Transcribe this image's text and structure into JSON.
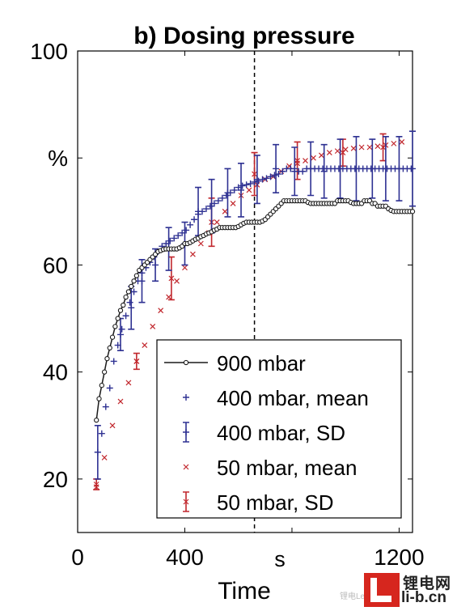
{
  "chart_data": {
    "type": "scatter",
    "title": "b) Dosing pressure",
    "xlabel": "Time",
    "x_unit_label": "s",
    "ylabel_unit": "%",
    "xlim": [
      0,
      1250
    ],
    "ylim": [
      10,
      100
    ],
    "xticks": [
      0,
      400,
      1200
    ],
    "yticks": [
      20,
      40,
      60,
      80,
      100
    ],
    "ytick_labels": [
      "20",
      "40",
      "60",
      "%",
      "100"
    ],
    "vline_x": 660,
    "legend_position": "lower-right",
    "colors": {
      "black": "#1a1a1a",
      "blue": "#2e3192",
      "red": "#c1272d"
    },
    "series": [
      {
        "name": "900 mbar",
        "marker": "circle-line",
        "color": "#1a1a1a",
        "x": [
          70,
          80,
          90,
          100,
          110,
          120,
          130,
          140,
          150,
          160,
          170,
          180,
          190,
          200,
          210,
          220,
          230,
          240,
          250,
          260,
          270,
          280,
          290,
          300,
          310,
          320,
          330,
          340,
          350,
          360,
          370,
          380,
          390,
          400,
          410,
          420,
          430,
          440,
          450,
          460,
          470,
          480,
          490,
          500,
          510,
          520,
          530,
          540,
          550,
          560,
          570,
          580,
          590,
          600,
          610,
          620,
          630,
          640,
          650,
          660,
          670,
          680,
          690,
          700,
          710,
          720,
          730,
          740,
          750,
          760,
          770,
          780,
          790,
          800,
          810,
          820,
          830,
          840,
          850,
          860,
          870,
          880,
          890,
          900,
          910,
          920,
          930,
          940,
          950,
          960,
          970,
          980,
          990,
          1000,
          1010,
          1020,
          1030,
          1040,
          1050,
          1060,
          1070,
          1080,
          1090,
          1100,
          1110,
          1120,
          1130,
          1140,
          1150,
          1160,
          1170,
          1180,
          1190,
          1200,
          1210,
          1220,
          1230,
          1240,
          1250
        ],
        "y": [
          31,
          35,
          37.5,
          40,
          42.5,
          44.5,
          46.5,
          48.5,
          50,
          51.5,
          52.5,
          54,
          55,
          56,
          57,
          58,
          59,
          59.5,
          60,
          60.5,
          61,
          61.5,
          62,
          62.5,
          62.7,
          62.9,
          63,
          63,
          63,
          63,
          63,
          63.2,
          63.5,
          64,
          64,
          64.2,
          64.5,
          64.8,
          65,
          65.3,
          65.5,
          65.8,
          66,
          66.2,
          66.5,
          66.7,
          67,
          67,
          67,
          67,
          67,
          67,
          67,
          67.2,
          67.5,
          67.8,
          68,
          68,
          68,
          68,
          68,
          68,
          68.2,
          68.5,
          69,
          69.5,
          70,
          70.5,
          71,
          71.5,
          72,
          72,
          72,
          72,
          72,
          72,
          72,
          72,
          72,
          71.7,
          71.5,
          71.5,
          71.5,
          71.5,
          71.5,
          71.5,
          71.5,
          71.5,
          71.5,
          71.5,
          72,
          72,
          72,
          72,
          72,
          71.7,
          71.5,
          71.5,
          71.5,
          71.5,
          72,
          72,
          72,
          71.5,
          71.5,
          71,
          71,
          71,
          71,
          70.5,
          70.2,
          70,
          70,
          70,
          70,
          70,
          70,
          70,
          70
        ]
      },
      {
        "name": "400 mbar, mean",
        "marker": "plus",
        "color": "#2e3192",
        "x": [
          75,
          90,
          105,
          120,
          135,
          150,
          165,
          180,
          195,
          210,
          225,
          240,
          255,
          270,
          285,
          300,
          315,
          330,
          345,
          360,
          375,
          390,
          405,
          420,
          435,
          450,
          465,
          480,
          495,
          510,
          525,
          540,
          555,
          570,
          585,
          600,
          615,
          630,
          645,
          660,
          675,
          690,
          705,
          720,
          735,
          750,
          765,
          780,
          795,
          810,
          825,
          840,
          855,
          870,
          885,
          900,
          915,
          930,
          945,
          960,
          975,
          990,
          1005,
          1020,
          1035,
          1050,
          1065,
          1080,
          1095,
          1110,
          1125,
          1140,
          1155,
          1170,
          1185,
          1200,
          1215,
          1230,
          1245
        ],
        "y": [
          25,
          28.5,
          33.5,
          37,
          42,
          45,
          48,
          50.5,
          53,
          55,
          57,
          58.5,
          59.5,
          60.5,
          61.5,
          62.5,
          63.5,
          64,
          64.5,
          65,
          65.5,
          66,
          66.5,
          67.5,
          68.5,
          69.5,
          70,
          70.5,
          71,
          71.5,
          72,
          72.5,
          73,
          73.5,
          74,
          74.5,
          74.8,
          75,
          75.2,
          75.5,
          75.7,
          76,
          76.2,
          76.5,
          76.8,
          77,
          77.5,
          78,
          78,
          78,
          77.5,
          77.5,
          78,
          78,
          78,
          78,
          78,
          78,
          78,
          78,
          78,
          78,
          78,
          78,
          78,
          78,
          78,
          78,
          78,
          78,
          78,
          78,
          78,
          78,
          78,
          78,
          78,
          78,
          78
        ]
      },
      {
        "name": "400 mbar, SD",
        "marker": "errorbar",
        "color": "#2e3192",
        "x": [
          75,
          160,
          200,
          240,
          290,
          340,
          400,
          450,
          500,
          560,
          610,
          670,
          740,
          810,
          870,
          920,
          980,
          1040,
          1100,
          1150,
          1200,
          1250
        ],
        "y": [
          25,
          47,
          52,
          57,
          60,
          63,
          64,
          70,
          71,
          73.5,
          74,
          76,
          78,
          77.5,
          78,
          77.5,
          78,
          78,
          78,
          78,
          78,
          78
        ],
        "err": [
          5,
          3,
          4,
          4,
          3,
          4,
          4,
          4.5,
          5,
          4.5,
          5,
          4.5,
          4.5,
          4.5,
          5,
          5,
          5.5,
          6,
          5.5,
          6,
          6,
          7
        ]
      },
      {
        "name": "50 mbar, mean",
        "marker": "x",
        "color": "#c1272d",
        "x": [
          70,
          100,
          130,
          160,
          190,
          220,
          250,
          280,
          310,
          340,
          370,
          400,
          430,
          460,
          490,
          520,
          550,
          580,
          610,
          640,
          670,
          700,
          730,
          760,
          790,
          820,
          850,
          880,
          910,
          940,
          970,
          1000,
          1030,
          1060,
          1090,
          1120,
          1150,
          1180,
          1210
        ],
        "y": [
          18.5,
          24,
          30,
          34.5,
          38,
          42,
          45,
          48.5,
          51.5,
          54,
          57,
          59.5,
          62,
          64,
          66,
          68,
          70,
          71.5,
          73,
          74,
          75,
          76,
          76.5,
          77.5,
          78.5,
          79,
          79.5,
          80,
          80.5,
          81,
          81.3,
          81.6,
          81.8,
          82,
          82,
          82.2,
          82.4,
          82.7,
          83
        ]
      },
      {
        "name": "50 mbar, SD",
        "marker": "errorbar",
        "color": "#c1272d",
        "x": [
          70,
          220,
          350,
          500,
          660,
          820,
          990,
          1140
        ],
        "y": [
          19,
          42,
          57.5,
          68,
          77,
          79.5,
          81,
          82
        ],
        "err": [
          1,
          1.5,
          4,
          4.5,
          4,
          3.5,
          2.5,
          2.5
        ]
      }
    ]
  },
  "watermark": {
    "line1": "锂电网",
    "line2": "li-b.cn",
    "small": "锂电Leader"
  }
}
